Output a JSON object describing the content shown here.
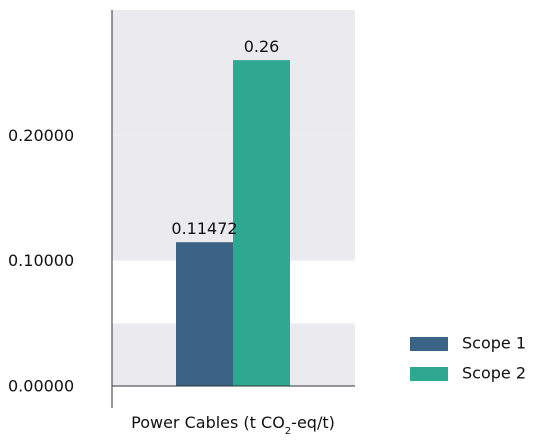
{
  "chart_data": {
    "type": "bar",
    "categories": [
      "Power Cables (t CO2-eq/t)"
    ],
    "category_label": {
      "prefix": "Power Cables (t CO",
      "subscript": "2",
      "suffix": "-eq/t)"
    },
    "series": [
      {
        "name": "Scope 1",
        "values": [
          0.11472
        ],
        "label": "0.11472",
        "color": "#3a6385"
      },
      {
        "name": "Scope 2",
        "values": [
          0.26
        ],
        "label": "0.26",
        "color": "#2ea891"
      }
    ],
    "ylim": [
      0,
      0.3
    ],
    "yticks": [
      {
        "value": 0.0,
        "label": "0.00000"
      },
      {
        "value": 0.1,
        "label": "0.10000"
      },
      {
        "value": 0.2,
        "label": "0.20000"
      }
    ],
    "bands": [
      [
        0.0,
        0.05
      ],
      [
        0.1,
        0.2
      ]
    ],
    "band_color": "#ebebef",
    "legend_position": "bottom-right",
    "xlabel": "",
    "ylabel": "",
    "title": ""
  }
}
